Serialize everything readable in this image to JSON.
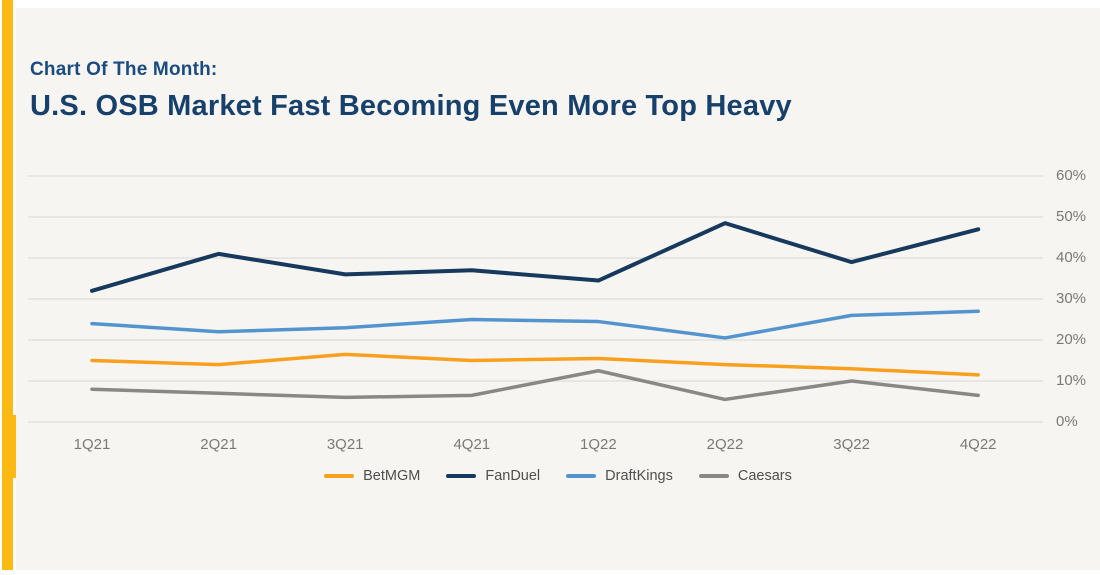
{
  "page": {
    "kicker": "Chart Of The Month:",
    "title": "U.S. OSB Market Fast Becoming Even More Top Heavy"
  },
  "colors": {
    "accent_bar": "#FDB913",
    "panel_bg": "#F6F5F2",
    "kicker_text": "#1A4C80",
    "title_text": "#17406A",
    "gridline": "#E3E1DC",
    "tick_label": "#7C7974",
    "legend_label": "#4F4F4D"
  },
  "chart_data": {
    "type": "line",
    "title": "U.S. OSB Market Fast Becoming Even More Top Heavy",
    "xlabel": "",
    "ylabel": "",
    "categories": [
      "1Q21",
      "2Q21",
      "3Q21",
      "4Q21",
      "1Q22",
      "2Q22",
      "3Q22",
      "4Q22"
    ],
    "series": [
      {
        "name": "BetMGM",
        "color": "#F9A11E",
        "values": [
          15,
          14,
          16.5,
          15,
          15.5,
          14,
          13,
          11.5
        ]
      },
      {
        "name": "FanDuel",
        "color": "#16395D",
        "values": [
          32,
          41,
          36,
          37,
          34.5,
          48.5,
          39,
          47
        ]
      },
      {
        "name": "DraftKings",
        "color": "#5494CE",
        "values": [
          24,
          22,
          23,
          25,
          24.5,
          20.5,
          26,
          27
        ]
      },
      {
        "name": "Caesars",
        "color": "#888886",
        "values": [
          8,
          7,
          6,
          6.5,
          12.5,
          5.5,
          10,
          6.5
        ]
      }
    ],
    "y_ticks": [
      "60%",
      "50%",
      "40%",
      "30%",
      "20%",
      "10%",
      "0%"
    ],
    "ylim": [
      0,
      60
    ],
    "grid": true,
    "y_axis_side": "right",
    "legend_position": "bottom",
    "value_unit": "% market share"
  }
}
